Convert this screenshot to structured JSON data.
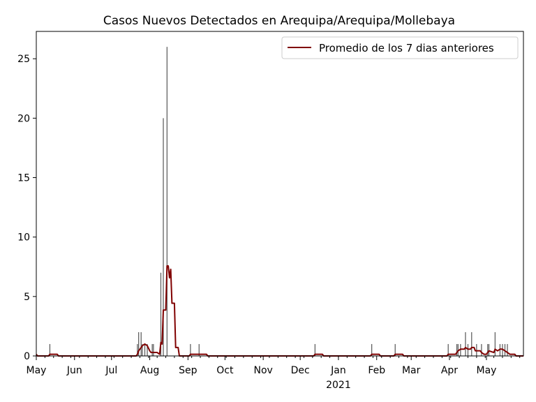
{
  "chart_data": {
    "type": "bar",
    "title": "Casos Nuevos Detectados en Arequipa/Arequipa/Mollebaya",
    "xlabel": "",
    "ylabel": "",
    "x_range": [
      "2020-05-01",
      "2021-05-31"
    ],
    "ylim": [
      0,
      27.3
    ],
    "y_ticks": [
      0,
      5,
      10,
      15,
      20,
      25
    ],
    "x_ticks": [
      {
        "date": "2020-05-01",
        "label": "May"
      },
      {
        "date": "2020-06-01",
        "label": "Jun"
      },
      {
        "date": "2020-07-01",
        "label": "Jul"
      },
      {
        "date": "2020-08-01",
        "label": "Aug"
      },
      {
        "date": "2020-09-01",
        "label": "Sep"
      },
      {
        "date": "2020-10-01",
        "label": "Oct"
      },
      {
        "date": "2020-11-01",
        "label": "Nov"
      },
      {
        "date": "2020-12-01",
        "label": "Dec"
      },
      {
        "date": "2021-01-01",
        "label": "Jan",
        "sublabel": "2021"
      },
      {
        "date": "2021-02-01",
        "label": "Feb"
      },
      {
        "date": "2021-03-01",
        "label": "Mar"
      },
      {
        "date": "2021-04-01",
        "label": "Apr"
      },
      {
        "date": "2021-05-01",
        "label": "May"
      }
    ],
    "grid": false,
    "legend": {
      "position": "top-right",
      "entries": [
        "Promedio de los 7 dias anteriores"
      ]
    },
    "series": [
      {
        "type": "bar",
        "color": "#555555",
        "points": [
          [
            "2020-05-12",
            1
          ],
          [
            "2020-07-22",
            1
          ],
          [
            "2020-07-23",
            2
          ],
          [
            "2020-07-25",
            2
          ],
          [
            "2020-07-26",
            1
          ],
          [
            "2020-07-28",
            1
          ],
          [
            "2020-07-30",
            1
          ],
          [
            "2020-08-03",
            1
          ],
          [
            "2020-08-04",
            1
          ],
          [
            "2020-08-10",
            7
          ],
          [
            "2020-08-12",
            20
          ],
          [
            "2020-08-15",
            26
          ],
          [
            "2020-09-03",
            1
          ],
          [
            "2020-09-10",
            1
          ],
          [
            "2020-12-13",
            1
          ],
          [
            "2021-01-28",
            1
          ],
          [
            "2021-02-16",
            1
          ],
          [
            "2021-03-31",
            1
          ],
          [
            "2021-04-07",
            1
          ],
          [
            "2021-04-08",
            1
          ],
          [
            "2021-04-10",
            1
          ],
          [
            "2021-04-14",
            2
          ],
          [
            "2021-04-16",
            1
          ],
          [
            "2021-04-19",
            2
          ],
          [
            "2021-04-23",
            1
          ],
          [
            "2021-04-27",
            1
          ],
          [
            "2021-05-02",
            1
          ],
          [
            "2021-05-03",
            1
          ],
          [
            "2021-05-08",
            2
          ],
          [
            "2021-05-12",
            1
          ],
          [
            "2021-05-14",
            1
          ],
          [
            "2021-05-16",
            1
          ],
          [
            "2021-05-18",
            1
          ]
        ]
      },
      {
        "type": "line",
        "name": "Promedio de los 7 dias anteriores",
        "color": "#800000",
        "points": [
          [
            "2020-05-01",
            0.14
          ],
          [
            "2020-05-02",
            0.0
          ],
          [
            "2020-05-11",
            0.0
          ],
          [
            "2020-05-12",
            0.14
          ],
          [
            "2020-05-18",
            0.14
          ],
          [
            "2020-05-19",
            0.0
          ],
          [
            "2020-07-21",
            0.0
          ],
          [
            "2020-07-22",
            0.14
          ],
          [
            "2020-07-23",
            0.43
          ],
          [
            "2020-07-25",
            0.71
          ],
          [
            "2020-07-26",
            0.86
          ],
          [
            "2020-07-28",
            1.0
          ],
          [
            "2020-07-30",
            0.86
          ],
          [
            "2020-08-01",
            0.43
          ],
          [
            "2020-08-02",
            0.29
          ],
          [
            "2020-08-04",
            0.29
          ],
          [
            "2020-08-07",
            0.29
          ],
          [
            "2020-08-09",
            0.14
          ],
          [
            "2020-08-10",
            1.14
          ],
          [
            "2020-08-11",
            1.0
          ],
          [
            "2020-08-12",
            3.86
          ],
          [
            "2020-08-14",
            3.86
          ],
          [
            "2020-08-15",
            7.57
          ],
          [
            "2020-08-16",
            7.57
          ],
          [
            "2020-08-17",
            6.57
          ],
          [
            "2020-08-18",
            7.29
          ],
          [
            "2020-08-19",
            4.43
          ],
          [
            "2020-08-21",
            4.43
          ],
          [
            "2020-08-22",
            0.71
          ],
          [
            "2020-08-24",
            0.71
          ],
          [
            "2020-08-25",
            0.0
          ],
          [
            "2020-09-02",
            0.0
          ],
          [
            "2020-09-03",
            0.14
          ],
          [
            "2020-09-09",
            0.14
          ],
          [
            "2020-09-10",
            0.14
          ],
          [
            "2020-09-16",
            0.14
          ],
          [
            "2020-09-17",
            0.0
          ],
          [
            "2020-12-12",
            0.0
          ],
          [
            "2020-12-13",
            0.14
          ],
          [
            "2020-12-19",
            0.14
          ],
          [
            "2020-12-20",
            0.0
          ],
          [
            "2021-01-27",
            0.0
          ],
          [
            "2021-01-28",
            0.14
          ],
          [
            "2021-02-03",
            0.14
          ],
          [
            "2021-02-04",
            0.0
          ],
          [
            "2021-02-15",
            0.0
          ],
          [
            "2021-02-16",
            0.14
          ],
          [
            "2021-02-22",
            0.14
          ],
          [
            "2021-02-23",
            0.0
          ],
          [
            "2021-03-30",
            0.0
          ],
          [
            "2021-03-31",
            0.14
          ],
          [
            "2021-04-06",
            0.14
          ],
          [
            "2021-04-07",
            0.29
          ],
          [
            "2021-04-08",
            0.43
          ],
          [
            "2021-04-10",
            0.57
          ],
          [
            "2021-04-13",
            0.57
          ],
          [
            "2021-04-14",
            0.71
          ],
          [
            "2021-04-16",
            0.57
          ],
          [
            "2021-04-18",
            0.57
          ],
          [
            "2021-04-19",
            0.71
          ],
          [
            "2021-04-21",
            0.71
          ],
          [
            "2021-04-22",
            0.43
          ],
          [
            "2021-04-23",
            0.43
          ],
          [
            "2021-04-26",
            0.43
          ],
          [
            "2021-04-27",
            0.29
          ],
          [
            "2021-04-29",
            0.14
          ],
          [
            "2021-05-01",
            0.14
          ],
          [
            "2021-05-02",
            0.29
          ],
          [
            "2021-05-03",
            0.43
          ],
          [
            "2021-05-07",
            0.29
          ],
          [
            "2021-05-08",
            0.57
          ],
          [
            "2021-05-10",
            0.43
          ],
          [
            "2021-05-12",
            0.57
          ],
          [
            "2021-05-14",
            0.57
          ],
          [
            "2021-05-16",
            0.43
          ],
          [
            "2021-05-18",
            0.29
          ],
          [
            "2021-05-20",
            0.14
          ],
          [
            "2021-05-24",
            0.14
          ],
          [
            "2021-05-25",
            0.0
          ],
          [
            "2021-05-31",
            0.0
          ]
        ]
      }
    ]
  }
}
